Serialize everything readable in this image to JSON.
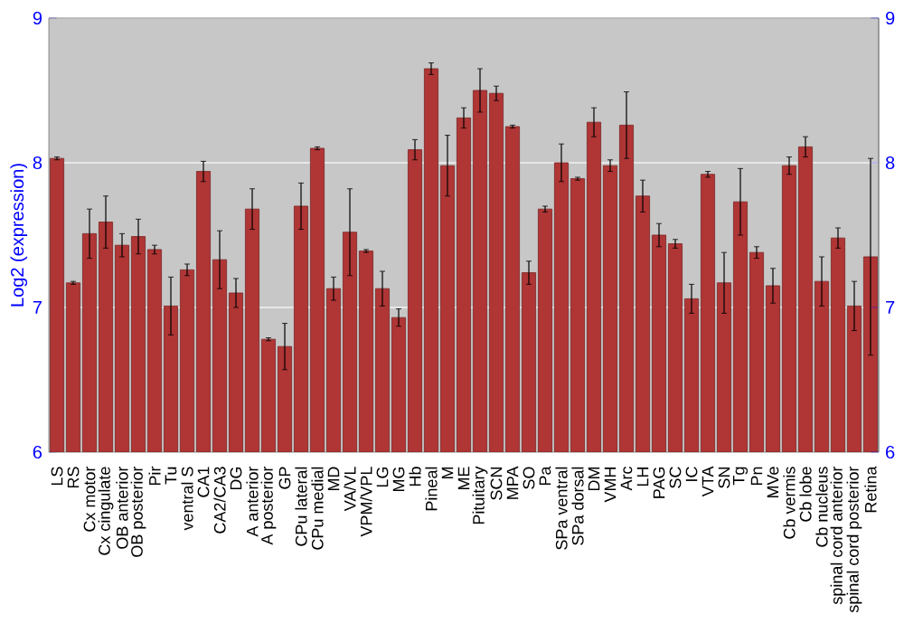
{
  "chart_data": {
    "type": "bar",
    "ylabel": "Log2 (expression)",
    "color": "#b03535",
    "grid": "y",
    "categories": [
      "LS",
      "RS",
      "Cx motor",
      "Cx cingulate",
      "OB anterior",
      "OB posterior",
      "Pir",
      "Tu",
      "ventral S",
      "CA1",
      "CA2/CA3",
      "DG",
      "A anterior",
      "A posterior",
      "GP",
      "CPu lateral",
      "CPu medial",
      "MD",
      "VA/VL",
      "VPM/VPL",
      "LG",
      "MG",
      "Hb",
      "Pineal",
      "M",
      "ME",
      "Pituitary",
      "SCN",
      "MPA",
      "SO",
      "Pa",
      "SPa ventral",
      "SPa dorsal",
      "DM",
      "VMH",
      "Arc",
      "LH",
      "PAG",
      "SC",
      "IC",
      "VTA",
      "SN",
      "Tg",
      "Pn",
      "MVe",
      "Cb vermis",
      "Cb lobe",
      "Cb nucleus",
      "spinal cord anterior",
      "spinal cord posterior",
      "Retina"
    ],
    "values": [
      8.03,
      7.17,
      7.51,
      7.59,
      7.43,
      7.49,
      7.4,
      7.01,
      7.26,
      7.94,
      7.33,
      7.1,
      7.68,
      6.78,
      6.73,
      7.7,
      8.1,
      7.13,
      7.52,
      7.39,
      7.13,
      6.93,
      8.09,
      8.65,
      7.98,
      8.31,
      8.5,
      8.48,
      8.25,
      7.24,
      7.68,
      8.0,
      7.89,
      8.28,
      7.98,
      8.26,
      7.77,
      7.5,
      7.44,
      7.06,
      7.92,
      7.17,
      7.73,
      7.38,
      7.15,
      7.98,
      8.11,
      7.18,
      7.48,
      7.01,
      7.35
    ],
    "errors": [
      0.01,
      0.01,
      0.17,
      0.18,
      0.08,
      0.12,
      0.03,
      0.2,
      0.04,
      0.07,
      0.2,
      0.1,
      0.14,
      0.01,
      0.16,
      0.16,
      0.01,
      0.08,
      0.3,
      0.01,
      0.12,
      0.06,
      0.07,
      0.04,
      0.21,
      0.07,
      0.15,
      0.05,
      0.01,
      0.08,
      0.02,
      0.13,
      0.01,
      0.1,
      0.04,
      0.23,
      0.11,
      0.08,
      0.03,
      0.1,
      0.02,
      0.21,
      0.23,
      0.04,
      0.12,
      0.06,
      0.07,
      0.17,
      0.07,
      0.17,
      0.68
    ],
    "ylim": [
      6,
      9
    ],
    "yticks": [
      6,
      7,
      8,
      9
    ],
    "y2lim": [
      6,
      9
    ],
    "y2ticks": [
      6,
      7,
      8,
      9
    ]
  }
}
